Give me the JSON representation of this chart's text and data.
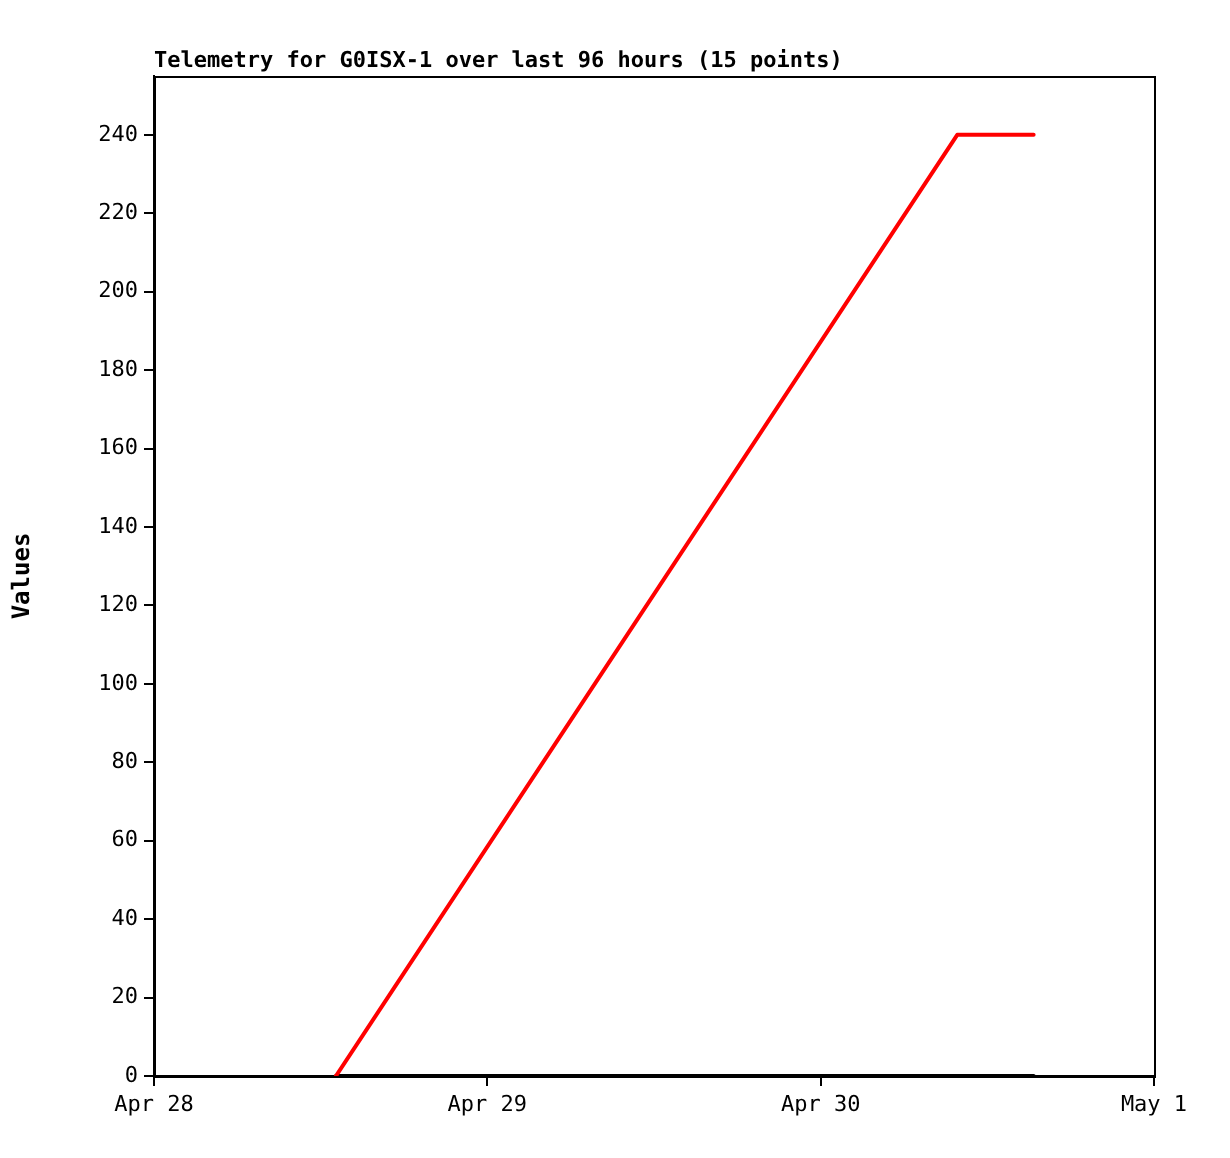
{
  "chart_data": {
    "type": "line",
    "title": "Telemetry for G0ISX-1 over last 96 hours (15 points)",
    "ylabel": "Values",
    "xlim": [
      "--04-28",
      "--05-01"
    ],
    "xticks": [
      {
        "value": "--04-28",
        "label": "Apr 28"
      },
      {
        "value": "--04-29",
        "label": "Apr 29"
      },
      {
        "value": "--04-30",
        "label": "Apr 30"
      },
      {
        "value": "--05-01",
        "label": "May 1"
      }
    ],
    "ylim": [
      0,
      255
    ],
    "yticks": [
      0,
      20,
      40,
      60,
      80,
      100,
      120,
      140,
      160,
      180,
      200,
      220,
      240
    ],
    "grid": false,
    "legend": false,
    "marker": "none",
    "line_style": "solid",
    "series": [
      {
        "color": "#ff0000",
        "x": [
          "--04-28T13:06",
          "--04-30T09:50",
          "--04-30T15:20"
        ],
        "values": [
          0,
          240,
          240
        ]
      },
      {
        "color": "#000000",
        "x": [
          "--04-28T13:06",
          "--04-30T15:20"
        ],
        "values": [
          0,
          0
        ]
      }
    ]
  }
}
